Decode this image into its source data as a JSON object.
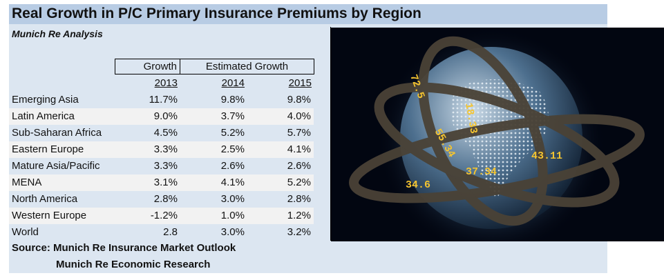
{
  "title": "Real Growth in P/C Primary Insurance Premiums by Region",
  "subtitle": "Munich Re Analysis",
  "header": {
    "growth": "Growth",
    "estimated": "Estimated Growth",
    "years": [
      "2013",
      "2014",
      "2015"
    ]
  },
  "rows": [
    {
      "region": "Emerging Asia",
      "v2013": "11.7%",
      "v2014": "9.8%",
      "v2015": "9.8%"
    },
    {
      "region": "Latin America",
      "v2013": "9.0%",
      "v2014": "3.7%",
      "v2015": "4.0%"
    },
    {
      "region": "Sub-Saharan Africa",
      "v2013": "4.5%",
      "v2014": "5.2%",
      "v2015": "5.7%"
    },
    {
      "region": "Eastern Europe",
      "v2013": "3.3%",
      "v2014": "2.5%",
      "v2015": "4.1%"
    },
    {
      "region": "Mature Asia/Pacific",
      "v2013": "3.3%",
      "v2014": "2.6%",
      "v2015": "2.6%"
    },
    {
      "region": "MENA",
      "v2013": "3.1%",
      "v2014": "4.1%",
      "v2015": "5.2%"
    },
    {
      "region": "North America",
      "v2013": "2.8%",
      "v2014": "3.0%",
      "v2015": "2.8%"
    },
    {
      "region": "Western Europe",
      "v2013": "-1.2%",
      "v2014": "1.0%",
      "v2015": "1.2%"
    },
    {
      "region": "World",
      "v2013": "2.8",
      "v2014": "3.0%",
      "v2015": "3.2%"
    }
  ],
  "source": {
    "line1": "Source: Munich Re Insurance Market Outlook",
    "line2": "Munich Re Economic Research"
  },
  "image": {
    "ticker_numbers": [
      "37.34",
      "43.11",
      "34.6",
      "55.34",
      "72.5",
      "18.33"
    ]
  }
}
